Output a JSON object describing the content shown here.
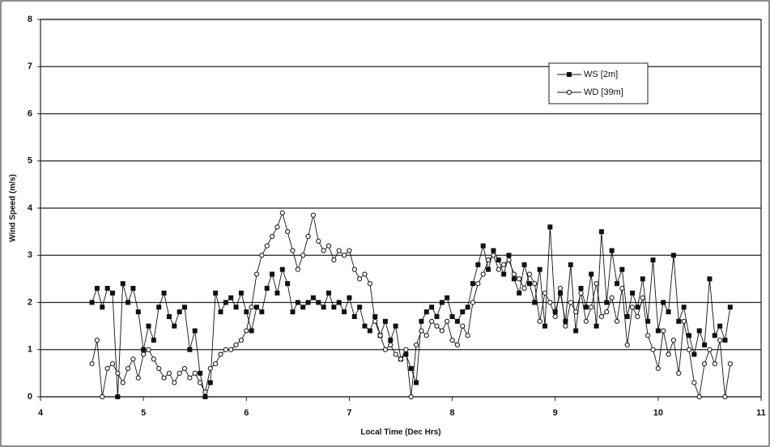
{
  "chart_data": {
    "type": "line",
    "xlabel": "Local Time (Dec Hrs)",
    "ylabel": "Wind Speed (m/s)",
    "xlim": [
      4,
      11
    ],
    "xticks": [
      4,
      5,
      6,
      7,
      8,
      9,
      10,
      11
    ],
    "ylim": [
      0,
      8
    ],
    "yticks": [
      0,
      1,
      2,
      3,
      4,
      5,
      6,
      7,
      8
    ],
    "grid": true,
    "legend": "upper right",
    "x": [
      4.5,
      4.55,
      4.6,
      4.65,
      4.7,
      4.75,
      4.8,
      4.85,
      4.9,
      4.95,
      5.0,
      5.05,
      5.1,
      5.15,
      5.2,
      5.25,
      5.3,
      5.35,
      5.4,
      5.45,
      5.5,
      5.55,
      5.6,
      5.65,
      5.7,
      5.75,
      5.8,
      5.85,
      5.9,
      5.95,
      6.0,
      6.05,
      6.1,
      6.15,
      6.2,
      6.25,
      6.3,
      6.35,
      6.4,
      6.45,
      6.5,
      6.55,
      6.6,
      6.65,
      6.7,
      6.75,
      6.8,
      6.85,
      6.9,
      6.95,
      7.0,
      7.05,
      7.1,
      7.15,
      7.2,
      7.25,
      7.3,
      7.35,
      7.4,
      7.45,
      7.5,
      7.55,
      7.6,
      7.65,
      7.7,
      7.75,
      7.8,
      7.85,
      7.9,
      7.95,
      8.0,
      8.05,
      8.1,
      8.15,
      8.2,
      8.25,
      8.3,
      8.35,
      8.4,
      8.45,
      8.5,
      8.55,
      8.6,
      8.65,
      8.7,
      8.75,
      8.8,
      8.85,
      8.9,
      8.95,
      9.0,
      9.05,
      9.1,
      9.15,
      9.2,
      9.25,
      9.3,
      9.35,
      9.4,
      9.45,
      9.5,
      9.55,
      9.6,
      9.65,
      9.7,
      9.75,
      9.8,
      9.85,
      9.9,
      9.95,
      10.0,
      10.05,
      10.1,
      10.15,
      10.2,
      10.25,
      10.3,
      10.35,
      10.4,
      10.45,
      10.5,
      10.55,
      10.6,
      10.65,
      10.7
    ],
    "series": [
      {
        "name": "WS [2m]",
        "color": "#111111",
        "marker": "square",
        "values": [
          2.0,
          2.3,
          1.9,
          2.3,
          2.2,
          0.0,
          2.4,
          2.0,
          2.3,
          1.8,
          1.0,
          1.5,
          1.2,
          1.9,
          2.2,
          1.7,
          1.5,
          1.8,
          1.9,
          1.0,
          1.4,
          0.5,
          0.0,
          0.3,
          2.2,
          1.8,
          2.0,
          2.1,
          1.9,
          2.2,
          1.8,
          1.4,
          1.9,
          1.8,
          2.3,
          2.6,
          2.2,
          2.7,
          2.4,
          1.8,
          2.0,
          1.9,
          2.0,
          2.1,
          2.0,
          1.9,
          2.2,
          1.9,
          2.0,
          1.8,
          2.1,
          1.7,
          1.9,
          1.5,
          1.4,
          1.7,
          1.3,
          1.6,
          1.2,
          1.5,
          0.8,
          0.9,
          0.6,
          0.3,
          1.6,
          1.8,
          1.9,
          1.7,
          2.0,
          2.1,
          1.7,
          1.6,
          1.8,
          1.9,
          2.4,
          2.8,
          3.2,
          2.7,
          3.1,
          2.9,
          2.6,
          3.0,
          2.5,
          2.2,
          2.8,
          2.4,
          2.0,
          2.7,
          1.5,
          3.6,
          1.8,
          2.2,
          1.6,
          2.8,
          1.4,
          2.3,
          1.9,
          2.6,
          1.5,
          3.5,
          2.0,
          3.1,
          2.4,
          2.7,
          1.7,
          2.2,
          1.9,
          2.5,
          1.6,
          2.9,
          1.4,
          2.0,
          1.8,
          3.0,
          1.6,
          1.9,
          1.3,
          0.9,
          1.4,
          1.1,
          2.5,
          1.3,
          1.5,
          1.2,
          1.9
        ]
      },
      {
        "name": "WD [39m]",
        "color": "#111111",
        "marker": "circle",
        "values": [
          0.7,
          1.2,
          0.0,
          0.6,
          0.7,
          0.5,
          0.3,
          0.6,
          0.8,
          0.4,
          0.9,
          1.0,
          0.8,
          0.6,
          0.4,
          0.5,
          0.3,
          0.5,
          0.6,
          0.4,
          0.5,
          0.3,
          0.1,
          0.6,
          0.7,
          0.9,
          1.0,
          1.0,
          1.1,
          1.2,
          1.4,
          1.9,
          2.6,
          3.0,
          3.2,
          3.4,
          3.6,
          3.9,
          3.5,
          3.1,
          2.7,
          3.0,
          3.4,
          3.85,
          3.3,
          3.1,
          3.2,
          2.9,
          3.1,
          3.0,
          3.1,
          2.7,
          2.5,
          2.6,
          2.4,
          1.6,
          1.3,
          1.0,
          1.1,
          0.9,
          0.8,
          1.0,
          0.0,
          1.1,
          1.4,
          1.3,
          1.6,
          1.5,
          1.4,
          1.6,
          1.2,
          1.1,
          1.5,
          1.3,
          2.0,
          2.4,
          2.6,
          2.9,
          3.0,
          2.7,
          2.8,
          2.9,
          2.6,
          2.5,
          2.3,
          2.6,
          2.4,
          1.6,
          2.2,
          2.0,
          1.7,
          2.3,
          1.5,
          2.0,
          1.8,
          2.2,
          1.6,
          1.9,
          2.4,
          1.7,
          1.8,
          2.1,
          1.6,
          2.3,
          1.1,
          1.9,
          1.7,
          2.1,
          1.3,
          1.0,
          0.6,
          1.4,
          0.9,
          1.2,
          0.5,
          1.6,
          1.0,
          0.3,
          0.0,
          0.7,
          1.0,
          0.7,
          1.2,
          0.0,
          0.7
        ]
      }
    ]
  }
}
